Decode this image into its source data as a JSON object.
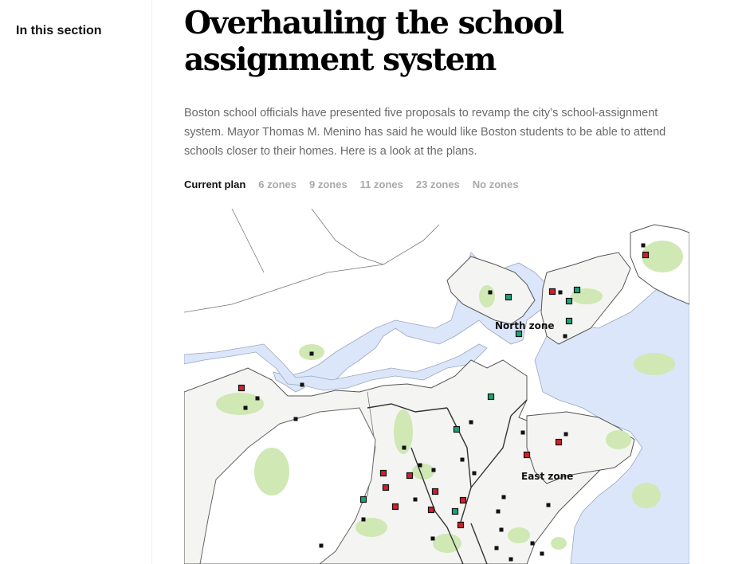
{
  "sidebar": {
    "title": "In this section"
  },
  "article": {
    "headline": "Overhauling the school assignment system",
    "dek": "Boston school officials have presented five proposals to revamp the city’s school-assignment system. Mayor Thomas M. Menino has said he would like Boston students to be able to attend schools closer to their homes. Here is a look at the plans."
  },
  "tabs": [
    {
      "label": "Current plan",
      "active": true
    },
    {
      "label": "6 zones",
      "active": false
    },
    {
      "label": "9 zones",
      "active": false
    },
    {
      "label": "11 zones",
      "active": false
    },
    {
      "label": "23 zones",
      "active": false
    },
    {
      "label": "No zones",
      "active": false
    }
  ],
  "map": {
    "zone_labels": {
      "north": "North zone",
      "east": "East zone"
    },
    "colors": {
      "water": "#dbe6fb",
      "park": "#cfe8b4",
      "school_red": "#d0202a",
      "school_green": "#1aa37a",
      "school_black": "#111111"
    }
  }
}
